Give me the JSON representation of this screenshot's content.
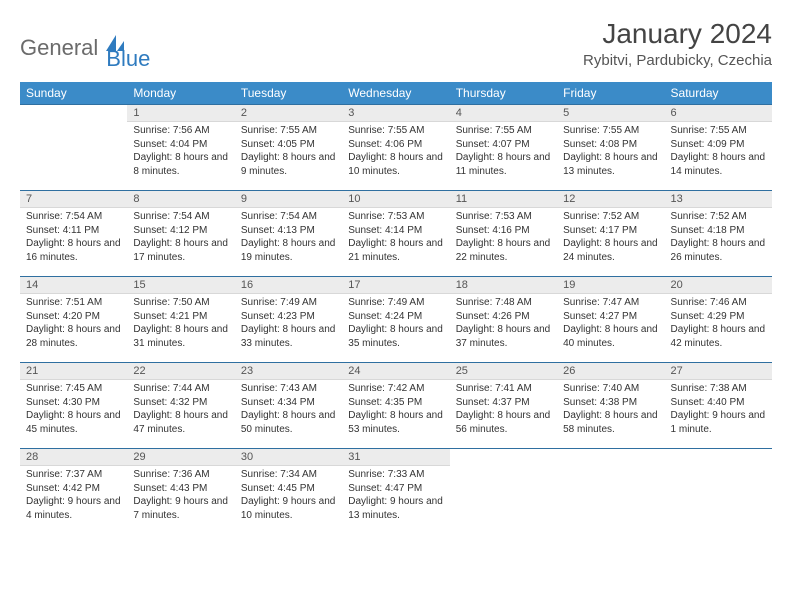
{
  "logo": {
    "textGeneral": "General",
    "textBlue": "Blue",
    "shapeColor": "#2f7bbf"
  },
  "title": "January 2024",
  "location": "Rybitvi, Pardubicky, Czechia",
  "headerBg": "#3b8bc8",
  "dayNames": [
    "Sunday",
    "Monday",
    "Tuesday",
    "Wednesday",
    "Thursday",
    "Friday",
    "Saturday"
  ],
  "weeks": [
    [
      {
        "num": "",
        "lines": []
      },
      {
        "num": "1",
        "lines": [
          "Sunrise: 7:56 AM",
          "Sunset: 4:04 PM",
          "Daylight: 8 hours and 8 minutes."
        ]
      },
      {
        "num": "2",
        "lines": [
          "Sunrise: 7:55 AM",
          "Sunset: 4:05 PM",
          "Daylight: 8 hours and 9 minutes."
        ]
      },
      {
        "num": "3",
        "lines": [
          "Sunrise: 7:55 AM",
          "Sunset: 4:06 PM",
          "Daylight: 8 hours and 10 minutes."
        ]
      },
      {
        "num": "4",
        "lines": [
          "Sunrise: 7:55 AM",
          "Sunset: 4:07 PM",
          "Daylight: 8 hours and 11 minutes."
        ]
      },
      {
        "num": "5",
        "lines": [
          "Sunrise: 7:55 AM",
          "Sunset: 4:08 PM",
          "Daylight: 8 hours and 13 minutes."
        ]
      },
      {
        "num": "6",
        "lines": [
          "Sunrise: 7:55 AM",
          "Sunset: 4:09 PM",
          "Daylight: 8 hours and 14 minutes."
        ]
      }
    ],
    [
      {
        "num": "7",
        "lines": [
          "Sunrise: 7:54 AM",
          "Sunset: 4:11 PM",
          "Daylight: 8 hours and 16 minutes."
        ]
      },
      {
        "num": "8",
        "lines": [
          "Sunrise: 7:54 AM",
          "Sunset: 4:12 PM",
          "Daylight: 8 hours and 17 minutes."
        ]
      },
      {
        "num": "9",
        "lines": [
          "Sunrise: 7:54 AM",
          "Sunset: 4:13 PM",
          "Daylight: 8 hours and 19 minutes."
        ]
      },
      {
        "num": "10",
        "lines": [
          "Sunrise: 7:53 AM",
          "Sunset: 4:14 PM",
          "Daylight: 8 hours and 21 minutes."
        ]
      },
      {
        "num": "11",
        "lines": [
          "Sunrise: 7:53 AM",
          "Sunset: 4:16 PM",
          "Daylight: 8 hours and 22 minutes."
        ]
      },
      {
        "num": "12",
        "lines": [
          "Sunrise: 7:52 AM",
          "Sunset: 4:17 PM",
          "Daylight: 8 hours and 24 minutes."
        ]
      },
      {
        "num": "13",
        "lines": [
          "Sunrise: 7:52 AM",
          "Sunset: 4:18 PM",
          "Daylight: 8 hours and 26 minutes."
        ]
      }
    ],
    [
      {
        "num": "14",
        "lines": [
          "Sunrise: 7:51 AM",
          "Sunset: 4:20 PM",
          "Daylight: 8 hours and 28 minutes."
        ]
      },
      {
        "num": "15",
        "lines": [
          "Sunrise: 7:50 AM",
          "Sunset: 4:21 PM",
          "Daylight: 8 hours and 31 minutes."
        ]
      },
      {
        "num": "16",
        "lines": [
          "Sunrise: 7:49 AM",
          "Sunset: 4:23 PM",
          "Daylight: 8 hours and 33 minutes."
        ]
      },
      {
        "num": "17",
        "lines": [
          "Sunrise: 7:49 AM",
          "Sunset: 4:24 PM",
          "Daylight: 8 hours and 35 minutes."
        ]
      },
      {
        "num": "18",
        "lines": [
          "Sunrise: 7:48 AM",
          "Sunset: 4:26 PM",
          "Daylight: 8 hours and 37 minutes."
        ]
      },
      {
        "num": "19",
        "lines": [
          "Sunrise: 7:47 AM",
          "Sunset: 4:27 PM",
          "Daylight: 8 hours and 40 minutes."
        ]
      },
      {
        "num": "20",
        "lines": [
          "Sunrise: 7:46 AM",
          "Sunset: 4:29 PM",
          "Daylight: 8 hours and 42 minutes."
        ]
      }
    ],
    [
      {
        "num": "21",
        "lines": [
          "Sunrise: 7:45 AM",
          "Sunset: 4:30 PM",
          "Daylight: 8 hours and 45 minutes."
        ]
      },
      {
        "num": "22",
        "lines": [
          "Sunrise: 7:44 AM",
          "Sunset: 4:32 PM",
          "Daylight: 8 hours and 47 minutes."
        ]
      },
      {
        "num": "23",
        "lines": [
          "Sunrise: 7:43 AM",
          "Sunset: 4:34 PM",
          "Daylight: 8 hours and 50 minutes."
        ]
      },
      {
        "num": "24",
        "lines": [
          "Sunrise: 7:42 AM",
          "Sunset: 4:35 PM",
          "Daylight: 8 hours and 53 minutes."
        ]
      },
      {
        "num": "25",
        "lines": [
          "Sunrise: 7:41 AM",
          "Sunset: 4:37 PM",
          "Daylight: 8 hours and 56 minutes."
        ]
      },
      {
        "num": "26",
        "lines": [
          "Sunrise: 7:40 AM",
          "Sunset: 4:38 PM",
          "Daylight: 8 hours and 58 minutes."
        ]
      },
      {
        "num": "27",
        "lines": [
          "Sunrise: 7:38 AM",
          "Sunset: 4:40 PM",
          "Daylight: 9 hours and 1 minute."
        ]
      }
    ],
    [
      {
        "num": "28",
        "lines": [
          "Sunrise: 7:37 AM",
          "Sunset: 4:42 PM",
          "Daylight: 9 hours and 4 minutes."
        ]
      },
      {
        "num": "29",
        "lines": [
          "Sunrise: 7:36 AM",
          "Sunset: 4:43 PM",
          "Daylight: 9 hours and 7 minutes."
        ]
      },
      {
        "num": "30",
        "lines": [
          "Sunrise: 7:34 AM",
          "Sunset: 4:45 PM",
          "Daylight: 9 hours and 10 minutes."
        ]
      },
      {
        "num": "31",
        "lines": [
          "Sunrise: 7:33 AM",
          "Sunset: 4:47 PM",
          "Daylight: 9 hours and 13 minutes."
        ]
      },
      {
        "num": "",
        "lines": []
      },
      {
        "num": "",
        "lines": []
      },
      {
        "num": "",
        "lines": []
      }
    ]
  ]
}
